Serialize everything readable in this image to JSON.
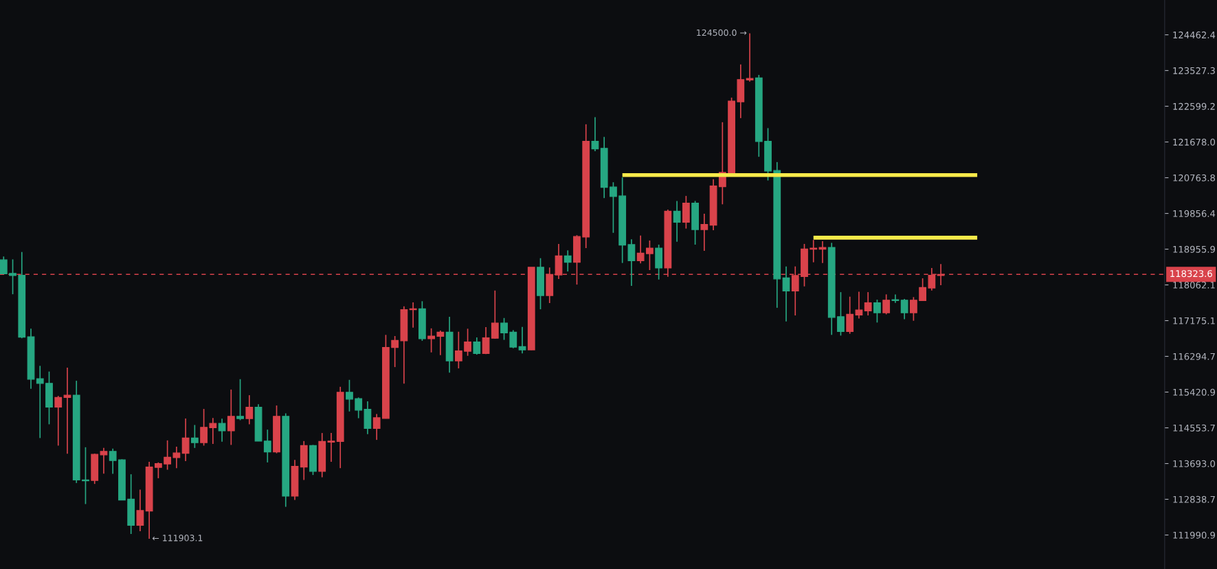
{
  "chart_data": {
    "type": "candlestick",
    "categories": [
      null,
      null,
      null,
      null,
      null,
      null,
      null,
      null,
      null,
      null,
      null,
      null,
      null,
      null,
      null,
      null,
      null,
      null,
      null,
      null,
      null,
      null,
      null,
      null,
      null,
      null,
      null,
      null,
      null,
      null,
      null,
      null,
      null,
      null,
      null,
      null,
      null,
      null,
      null,
      null,
      null,
      null,
      null,
      null,
      null,
      null,
      null,
      null,
      null,
      null,
      null,
      null,
      null,
      null,
      null,
      null,
      null,
      null,
      null,
      null,
      null,
      null,
      null,
      null,
      null,
      null,
      null,
      null,
      null,
      null,
      null,
      null,
      null,
      null,
      null,
      null,
      null,
      null,
      null,
      null,
      null,
      null,
      null,
      null,
      null,
      null,
      null,
      null,
      null,
      null,
      null,
      null,
      null,
      null,
      null,
      null,
      null,
      null,
      null,
      null,
      null,
      null,
      null,
      null,
      null,
      null,
      null,
      null,
      null,
      null,
      null,
      null,
      null,
      null,
      null,
      null,
      null,
      null,
      null,
      null,
      null,
      null,
      null,
      null,
      null,
      null,
      null,
      null
    ],
    "ohlc": [
      [
        118686,
        118772,
        118330,
        118341
      ],
      [
        118350,
        118700,
        117830,
        118295
      ],
      [
        118300,
        118885,
        116740,
        116765
      ],
      [
        116777,
        116975,
        115500,
        115736
      ],
      [
        115747,
        116062,
        114307,
        115635
      ],
      [
        115635,
        115922,
        114639,
        115055
      ],
      [
        115055,
        115328,
        114124,
        115290
      ],
      [
        115290,
        116017,
        113930,
        115345
      ],
      [
        115345,
        115697,
        113227,
        113299
      ],
      [
        113300,
        114085,
        112725,
        113280
      ],
      [
        113288,
        113930,
        113205,
        113913
      ],
      [
        113902,
        114068,
        113452,
        113985
      ],
      [
        113985,
        114052,
        113447,
        113764
      ],
      [
        113781,
        113795,
        112815,
        112822
      ],
      [
        112843,
        113436,
        112015,
        112219
      ],
      [
        112219,
        113069,
        112081,
        112571
      ],
      [
        112561,
        113736,
        111903.1,
        113611
      ],
      [
        113600,
        113720,
        113341,
        113693
      ],
      [
        113682,
        114250,
        113545,
        113846
      ],
      [
        113835,
        114097,
        113583,
        113946
      ],
      [
        113940,
        114777,
        113752,
        114307
      ],
      [
        114307,
        114622,
        114068,
        114196
      ],
      [
        114196,
        115011,
        114124,
        114565
      ],
      [
        114555,
        114793,
        114163,
        114660
      ],
      [
        114660,
        114776,
        114218,
        114480
      ],
      [
        114480,
        115483,
        114141,
        114832
      ],
      [
        114832,
        115736,
        114738,
        114776
      ],
      [
        114776,
        115345,
        114639,
        115050
      ],
      [
        115050,
        115123,
        114230,
        114234
      ],
      [
        114234,
        114510,
        113720,
        113974
      ],
      [
        113974,
        115095,
        113940,
        114832
      ],
      [
        114832,
        114904,
        112659,
        112914
      ],
      [
        112914,
        113781,
        112822,
        113627
      ],
      [
        113611,
        114234,
        113299,
        114124
      ],
      [
        114124,
        114140,
        113419,
        113506
      ],
      [
        113506,
        114428,
        113364,
        114223
      ],
      [
        114207,
        114428,
        113736,
        114234
      ],
      [
        114223,
        115550,
        113583,
        115416
      ],
      [
        115416,
        115719,
        114950,
        115250
      ],
      [
        115262,
        115290,
        114786,
        114983
      ],
      [
        115000,
        115195,
        114400,
        114540
      ],
      [
        114540,
        114888,
        114262,
        114799
      ],
      [
        114782,
        116823,
        114780,
        116511
      ],
      [
        116511,
        116794,
        116032,
        116688
      ],
      [
        116677,
        117530,
        115625,
        117445
      ],
      [
        117445,
        117627,
        117002,
        117469
      ],
      [
        117469,
        117656,
        116677,
        116728
      ],
      [
        116728,
        116984,
        116392,
        116794
      ],
      [
        116789,
        116930,
        116326,
        116890
      ],
      [
        116890,
        117269,
        115894,
        116185
      ],
      [
        116185,
        116901,
        115999,
        116428
      ],
      [
        116420,
        116975,
        116308,
        116650
      ],
      [
        116650,
        116761,
        116336,
        116366
      ],
      [
        116366,
        117014,
        116350,
        116750
      ],
      [
        116740,
        117922,
        116730,
        117116
      ],
      [
        117116,
        117240,
        116700,
        116874
      ],
      [
        116890,
        116940,
        116494,
        116522
      ],
      [
        116533,
        117020,
        116366,
        116454
      ],
      [
        116454,
        118501,
        116450,
        118501
      ],
      [
        118501,
        118730,
        117456,
        117798
      ],
      [
        117798,
        118496,
        117610,
        118324
      ],
      [
        118312,
        119088,
        118207,
        118789
      ],
      [
        118789,
        118926,
        118398,
        118627
      ],
      [
        118627,
        119308,
        118070,
        119273
      ],
      [
        119261,
        122134,
        118983,
        121696
      ],
      [
        121696,
        122317,
        121444,
        121502
      ],
      [
        121514,
        121808,
        120246,
        120519
      ],
      [
        120526,
        120648,
        119367,
        120286
      ],
      [
        120299,
        120771,
        118610,
        119059
      ],
      [
        119070,
        119204,
        118036,
        118668
      ],
      [
        118668,
        119300,
        118600,
        118858
      ],
      [
        118845,
        119173,
        118432,
        118983
      ],
      [
        118983,
        119070,
        118196,
        118484
      ],
      [
        118484,
        119954,
        118265,
        119914
      ],
      [
        119914,
        120173,
        119144,
        119636
      ],
      [
        119636,
        120300,
        119474,
        120115
      ],
      [
        120115,
        120173,
        119070,
        119450
      ],
      [
        119450,
        119850,
        118915,
        119578
      ],
      [
        119560,
        120724,
        119433,
        120554
      ],
      [
        120536,
        122187,
        120088,
        120899
      ],
      [
        120876,
        122822,
        120870,
        122733
      ],
      [
        122715,
        123686,
        122293,
        123292
      ],
      [
        123280,
        124500.0,
        123239,
        123322
      ],
      [
        123333,
        123413,
        121298,
        121690
      ],
      [
        121696,
        122035,
        120694,
        120935
      ],
      [
        120946,
        121163,
        117493,
        118212
      ],
      [
        118237,
        118524,
        117155,
        117912
      ],
      [
        117912,
        118524,
        117303,
        118295
      ],
      [
        118272,
        119088,
        118025,
        118961
      ],
      [
        118954,
        119187,
        118627,
        118983
      ],
      [
        118954,
        119155,
        118610,
        119000
      ],
      [
        119000,
        119115,
        116823,
        117257
      ],
      [
        117274,
        117882,
        116806,
        116906
      ],
      [
        116906,
        117769,
        116850,
        117331
      ],
      [
        117314,
        117894,
        117229,
        117439
      ],
      [
        117416,
        117882,
        117303,
        117615
      ],
      [
        117615,
        117695,
        117128,
        117371
      ],
      [
        117371,
        117826,
        117331,
        117683
      ],
      [
        117695,
        117826,
        117615,
        117672
      ],
      [
        117683,
        117712,
        117212,
        117371
      ],
      [
        117371,
        117758,
        117172,
        117683
      ],
      [
        117672,
        118226,
        117665,
        117997
      ],
      [
        117986,
        118484,
        117922,
        118300
      ],
      [
        118295,
        118582,
        118053,
        118323.6
      ],
      null,
      null,
      null,
      null,
      null,
      null,
      null,
      null,
      null,
      null,
      null,
      null,
      null,
      null,
      null,
      null,
      null,
      null,
      null,
      null,
      null,
      null,
      null,
      null
    ],
    "colors": [
      "#26a782",
      "#26a782",
      "#26a782",
      "#26a782",
      "#26a782",
      "#26a782",
      "#d9434b",
      "#d9434b",
      "#26a782",
      "#26a782",
      "#d9434b",
      "#d9434b",
      "#26a782",
      "#26a782",
      "#26a782",
      "#d9434b",
      "#d9434b",
      "#d9434b",
      "#d9434b",
      "#d9434b",
      "#d9434b",
      "#26a782",
      "#d9434b",
      "#d9434b",
      "#26a782",
      "#d9434b",
      "#26a782",
      "#d9434b",
      "#26a782",
      "#26a782",
      "#d9434b",
      "#26a782",
      "#d9434b",
      "#d9434b",
      "#26a782",
      "#d9434b",
      "#d9434b",
      "#d9434b",
      "#26a782",
      "#26a782",
      "#26a782",
      "#d9434b",
      "#d9434b",
      "#d9434b",
      "#d9434b",
      "#d9434b",
      "#26a782",
      "#d9434b",
      "#d9434b",
      "#26a782",
      "#d9434b",
      "#d9434b",
      "#26a782",
      "#d9434b",
      "#d9434b",
      "#26a782",
      "#26a782",
      "#26a782",
      "#d9434b",
      "#26a782",
      "#d9434b",
      "#d9434b",
      "#26a782",
      "#d9434b",
      "#d9434b",
      "#26a782",
      "#26a782",
      "#26a782",
      "#26a782",
      "#26a782",
      "#d9434b",
      "#d9434b",
      "#26a782",
      "#d9434b",
      "#26a782",
      "#d9434b",
      "#26a782",
      "#d9434b",
      "#d9434b",
      "#d9434b",
      "#d9434b",
      "#d9434b",
      "#d9434b",
      "#26a782",
      "#26a782",
      "#26a782",
      "#26a782",
      "#d9434b",
      "#d9434b",
      "#d9434b",
      "#d9434b",
      "#26a782",
      "#26a782",
      "#d9434b",
      "#d9434b",
      "#d9434b",
      "#26a782",
      "#d9434b",
      "#26a782",
      "#26a782",
      "#d9434b",
      "#d9434b",
      "#d9434b",
      "#d9434b",
      null,
      null,
      null,
      null,
      null,
      null,
      null,
      null,
      null,
      null,
      null,
      null,
      null,
      null,
      null,
      null,
      null,
      null,
      null,
      null,
      null,
      null,
      null,
      null
    ],
    "series": [
      {
        "type": "line",
        "color": "#f7ea4a",
        "values": [
          null,
          null,
          null,
          null,
          null,
          null,
          null,
          null,
          null,
          null,
          null,
          null,
          null,
          null,
          null,
          null,
          null,
          null,
          null,
          null,
          null,
          null,
          null,
          null,
          null,
          null,
          null,
          null,
          null,
          null,
          null,
          null,
          null,
          null,
          null,
          null,
          null,
          null,
          null,
          null,
          null,
          null,
          null,
          null,
          null,
          null,
          null,
          null,
          null,
          null,
          null,
          null,
          null,
          null,
          null,
          null,
          null,
          null,
          null,
          null,
          null,
          null,
          null,
          null,
          null,
          null,
          null,
          null,
          120830,
          120830,
          120830,
          120830,
          120830,
          120830,
          120830,
          120830,
          120830,
          120830,
          120830,
          120830,
          120830,
          120830,
          120830,
          120830,
          120830,
          120830,
          120830,
          120830,
          120830,
          120830,
          120830,
          120830,
          120830,
          120830,
          120830,
          120830,
          120830,
          120830,
          120830,
          120830,
          120830,
          120830,
          120830,
          120830,
          120830,
          120830,
          120830,
          120830,
          null,
          null,
          null,
          null,
          null,
          null,
          null,
          null,
          null,
          null,
          null,
          null,
          null,
          null,
          null,
          null,
          null,
          null,
          null,
          null
        ]
      },
      {
        "type": "line",
        "color": "#f7ea4a",
        "values": [
          null,
          null,
          null,
          null,
          null,
          null,
          null,
          null,
          null,
          null,
          null,
          null,
          null,
          null,
          null,
          null,
          null,
          null,
          null,
          null,
          null,
          null,
          null,
          null,
          null,
          null,
          null,
          null,
          null,
          null,
          null,
          null,
          null,
          null,
          null,
          null,
          null,
          null,
          null,
          null,
          null,
          null,
          null,
          null,
          null,
          null,
          null,
          null,
          null,
          null,
          null,
          null,
          null,
          null,
          null,
          null,
          null,
          null,
          null,
          null,
          null,
          null,
          null,
          null,
          null,
          null,
          null,
          null,
          null,
          null,
          null,
          null,
          null,
          null,
          null,
          null,
          null,
          null,
          null,
          null,
          null,
          null,
          null,
          null,
          null,
          null,
          null,
          null,
          null,
          119245,
          119245,
          119245,
          119245,
          119245,
          119245,
          119245,
          119245,
          119245,
          119245,
          119245,
          119245,
          119245,
          119245,
          119245,
          119245,
          119245,
          119245,
          119245,
          null,
          null,
          null,
          null,
          null,
          null,
          null,
          null,
          null,
          null,
          null,
          null,
          null,
          null,
          null,
          null,
          null,
          null,
          null,
          null
        ]
      }
    ],
    "log": true,
    "ylim": [
      111190,
      125380
    ],
    "yticks": [
      111990.9,
      112838.7,
      {
        "value": 113693,
        "label": "113693.0"
      },
      114553.7,
      115420.9,
      116294.7,
      117175.1,
      118062.1,
      118955.9,
      119856.4,
      120763.8,
      {
        "value": 121678,
        "label": "121678.0"
      },
      122599.2,
      123527.3,
      124462.4
    ],
    "tick_labels": "y",
    "ref_lines": [
      {
        "axis": "y",
        "value": 118323.6,
        "label": "118323.6",
        "color": "#d9434b",
        "line_style": "dashed"
      }
    ],
    "annotations": [
      "124500.0 →",
      "← 111903.1"
    ]
  }
}
